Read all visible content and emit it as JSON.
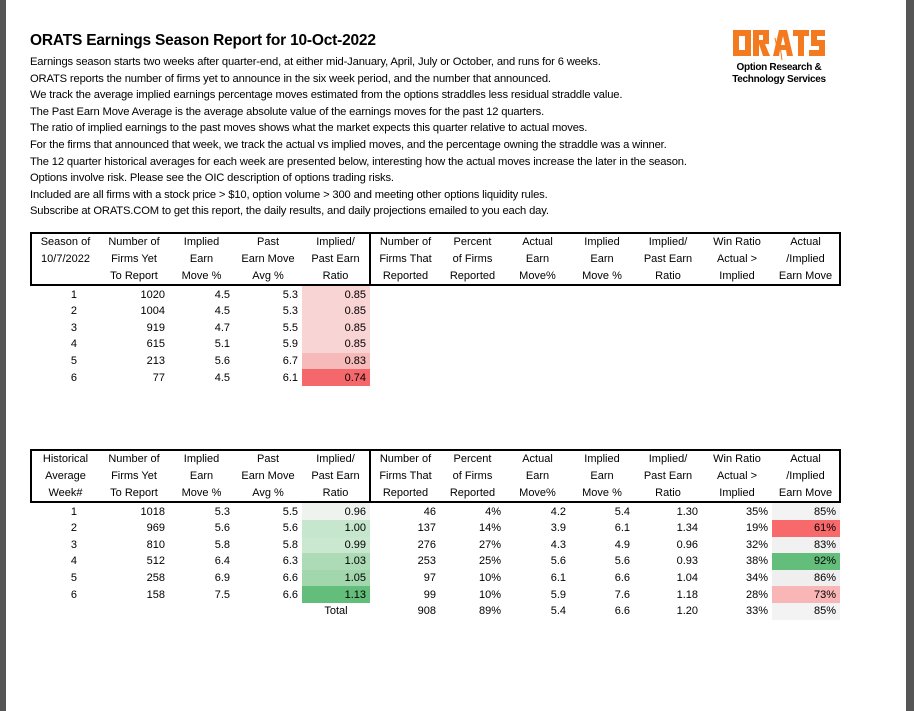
{
  "title": "ORATS Earnings Season Report for 10-Oct-2022",
  "intro": [
    "Earnings season starts two weeks after quarter-end, at either mid-January, April, July or October, and runs for 6 weeks.",
    "ORATS reports the number of firms yet to announce in the six week period, and the number that announced.",
    "We track the average implied earnings percentage moves estimated from the options straddles less residual straddle value.",
    "The Past Earn Move Average is the average absolute value of the earnings moves for the past 12 quarters.",
    "The ratio of implied earnings to the past moves shows what the market expects this quarter relative to actual moves.",
    "For the firms that announced that week, we track the actual vs implied moves, and the percentage owning the straddle was a winner.",
    "The 12 quarter historical averages for each week are presented below, interesting how the actual moves increase the later in the season.",
    "Options involve risk. Please see the OIC description of options trading risks.",
    "Included are all firms with a stock price > $10, option volume > 300 and meeting other options liquidity rules.",
    "Subscribe at ORATS.COM to get this report, the daily results, and daily projections emailed to you each day."
  ],
  "logo": {
    "text": "ORATS",
    "subtitle_1": "Option Research &",
    "subtitle_2": "Technology Services",
    "color": "#f47a20"
  },
  "current_table": {
    "headers": [
      [
        "Season of",
        "10/7/2022",
        ""
      ],
      [
        "Number of",
        "Firms Yet",
        "To Report"
      ],
      [
        "Implied",
        "Earn",
        "Move %"
      ],
      [
        "Past",
        "Earn Move",
        "Avg %"
      ],
      [
        "Implied/",
        "Past Earn",
        "Ratio"
      ],
      [
        "Number of",
        "Firms That",
        "Reported"
      ],
      [
        "Percent",
        "of Firms",
        "Reported"
      ],
      [
        "Actual",
        "Earn",
        "Move%"
      ],
      [
        "Implied",
        "Earn",
        "Move %"
      ],
      [
        "Implied/",
        "Past Earn",
        "Ratio"
      ],
      [
        "Win Ratio",
        "Actual >",
        "Implied"
      ],
      [
        "Actual",
        "/Implied",
        "Earn Move"
      ]
    ],
    "rows": [
      [
        "1",
        "1020",
        "4.5",
        "5.3",
        "0.85",
        "",
        "",
        "",
        "",
        "",
        "",
        ""
      ],
      [
        "2",
        "1004",
        "4.5",
        "5.3",
        "0.85",
        "",
        "",
        "",
        "",
        "",
        "",
        ""
      ],
      [
        "3",
        "919",
        "4.7",
        "5.5",
        "0.85",
        "",
        "",
        "",
        "",
        "",
        "",
        ""
      ],
      [
        "4",
        "615",
        "5.1",
        "5.9",
        "0.85",
        "",
        "",
        "",
        "",
        "",
        "",
        ""
      ],
      [
        "5",
        "213",
        "5.6",
        "6.7",
        "0.83",
        "",
        "",
        "",
        "",
        "",
        "",
        ""
      ],
      [
        "6",
        "77",
        "4.5",
        "6.1",
        "0.74",
        "",
        "",
        "",
        "",
        "",
        "",
        ""
      ]
    ],
    "ratio_colors": [
      "#f9d4d4",
      "#f9d4d4",
      "#f9d4d4",
      "#f9d4d4",
      "#f7baba",
      "#f4686b"
    ]
  },
  "historical_table": {
    "headers": [
      [
        "Historical",
        "Average",
        "Week#"
      ],
      [
        "Number of",
        "Firms Yet",
        "To Report"
      ],
      [
        "Implied",
        "Earn",
        "Move %"
      ],
      [
        "Past",
        "Earn Move",
        "Avg %"
      ],
      [
        "Implied/",
        "Past Earn",
        "Ratio"
      ],
      [
        "Number of",
        "Firms That",
        "Reported"
      ],
      [
        "Percent",
        "of Firms",
        "Reported"
      ],
      [
        "Actual",
        "Earn",
        "Move%"
      ],
      [
        "Implied",
        "Earn",
        "Move %"
      ],
      [
        "Implied/",
        "Past Earn",
        "Ratio"
      ],
      [
        "Win Ratio",
        "Actual >",
        "Implied"
      ],
      [
        "Actual",
        "/Implied",
        "Earn Move"
      ]
    ],
    "rows": [
      [
        "1",
        "1018",
        "5.3",
        "5.5",
        "0.96",
        "46",
        "4%",
        "4.2",
        "5.4",
        "1.30",
        "35%",
        "85%"
      ],
      [
        "2",
        "969",
        "5.6",
        "5.6",
        "1.00",
        "137",
        "14%",
        "3.9",
        "6.1",
        "1.34",
        "19%",
        "61%"
      ],
      [
        "3",
        "810",
        "5.8",
        "5.8",
        "0.99",
        "276",
        "27%",
        "4.3",
        "4.9",
        "0.96",
        "32%",
        "83%"
      ],
      [
        "4",
        "512",
        "6.4",
        "6.3",
        "1.03",
        "253",
        "25%",
        "5.6",
        "5.6",
        "0.93",
        "38%",
        "92%"
      ],
      [
        "5",
        "258",
        "6.9",
        "6.6",
        "1.05",
        "97",
        "10%",
        "6.1",
        "6.6",
        "1.04",
        "34%",
        "86%"
      ],
      [
        "6",
        "158",
        "7.5",
        "6.6",
        "1.13",
        "99",
        "10%",
        "5.9",
        "7.6",
        "1.18",
        "28%",
        "73%"
      ],
      [
        "",
        "",
        "",
        "",
        "Total",
        "908",
        "89%",
        "5.4",
        "6.6",
        "1.20",
        "33%",
        "85%"
      ]
    ],
    "ratio_colors": [
      "#eef3ee",
      "#c6e6cd",
      "#c9e8cf",
      "#acdbb6",
      "#a2d7ad",
      "#63be7b",
      ""
    ],
    "actual_implied_colors": [
      "#f3f3f3",
      "#f8696b",
      "#f1f1f1",
      "#63be7b",
      "#efefef",
      "#f9b6b7",
      "#f3f3f3"
    ]
  }
}
